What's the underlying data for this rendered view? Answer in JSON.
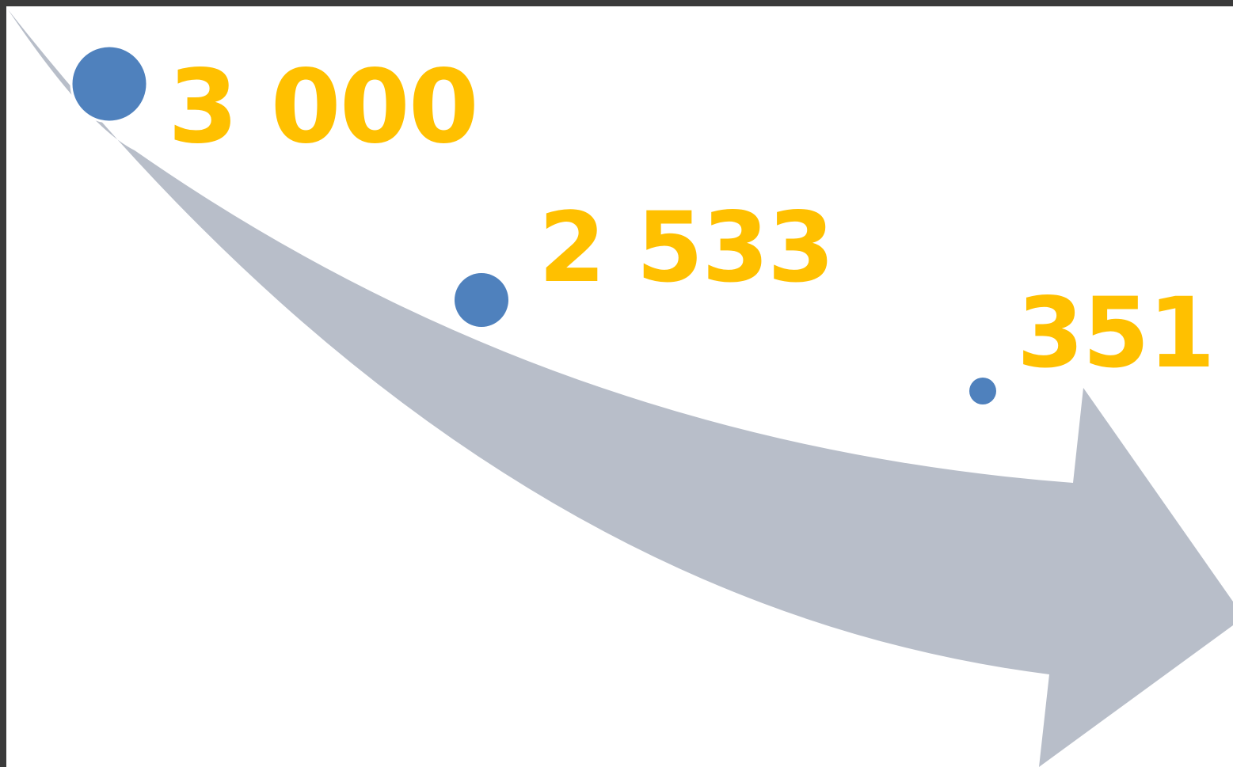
{
  "colors": {
    "frame": "#3a3a3a",
    "background": "#ffffff",
    "arrow": "#b8bec9",
    "dot": "#4f81bd",
    "dot_outline": "#ffffff",
    "value_text": "#ffc000"
  },
  "points": [
    {
      "label": "3 000",
      "value": 3000
    },
    {
      "label": "2 533",
      "value": 2533
    },
    {
      "label": "351",
      "value": 351
    }
  ]
}
